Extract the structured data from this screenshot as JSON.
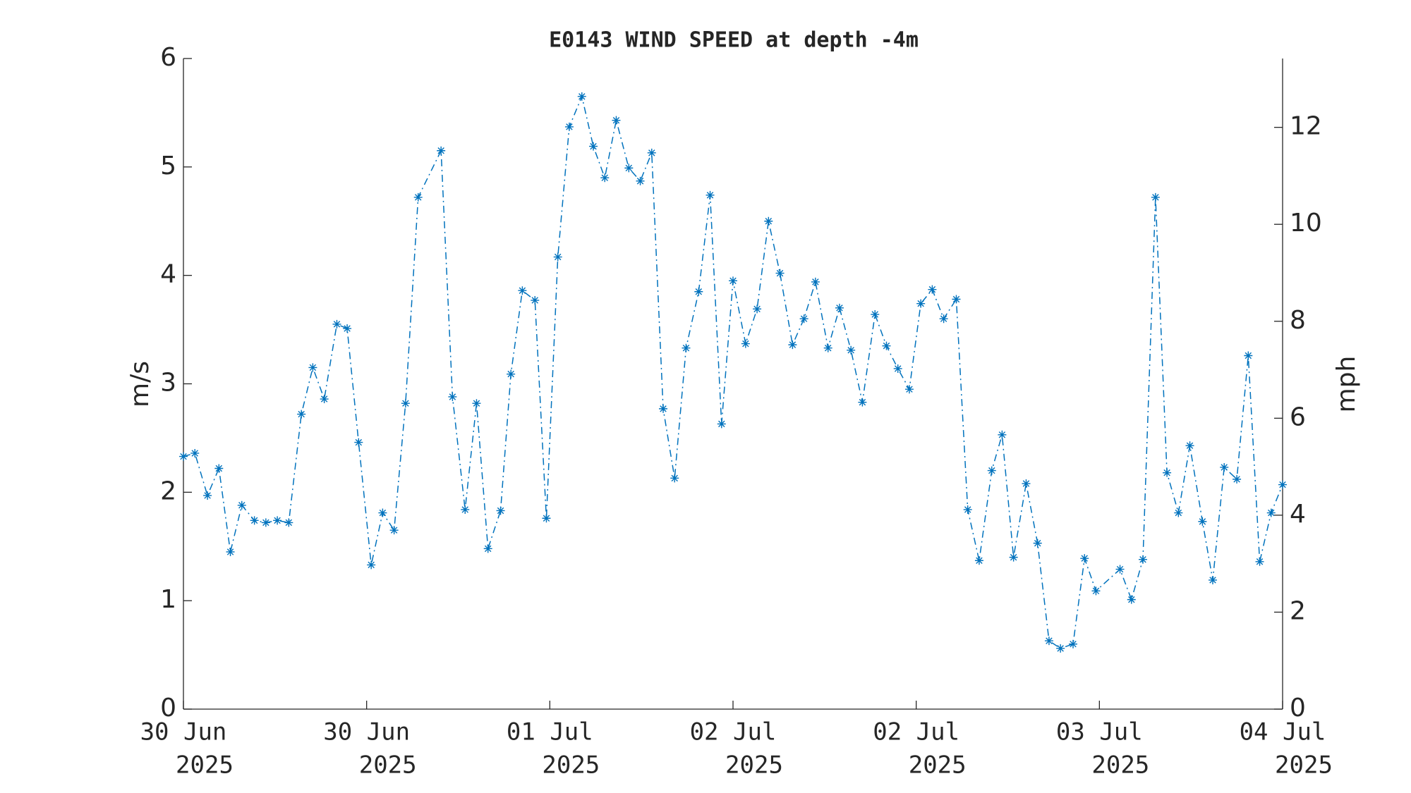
{
  "chart_data": {
    "type": "line",
    "title": "E0143 WIND SPEED at depth -4m",
    "ylabel": "m/s",
    "y2label": "mph",
    "color": "#0072BD",
    "line_style": "dashdot",
    "marker": "asterisk",
    "xlim": [
      0,
      96
    ],
    "xticks": [
      {
        "value": 0,
        "label": "30 Jun",
        "year": "2025"
      },
      {
        "value": 16,
        "label": "30 Jun",
        "year": "2025"
      },
      {
        "value": 32,
        "label": "01 Jul",
        "year": "2025"
      },
      {
        "value": 48,
        "label": "02 Jul",
        "year": "2025"
      },
      {
        "value": 64,
        "label": "02 Jul",
        "year": "2025"
      },
      {
        "value": 80,
        "label": "03 Jul",
        "year": "2025"
      },
      {
        "value": 96,
        "label": "04 Jul",
        "year": "2025"
      }
    ],
    "ylim": [
      0,
      6
    ],
    "yticks": [
      0,
      1,
      2,
      3,
      4,
      5,
      6
    ],
    "y2lim": [
      0,
      13.42
    ],
    "y2ticks": [
      0,
      2,
      4,
      6,
      8,
      10,
      12
    ],
    "x": [
      0,
      1.0,
      2.1,
      3.1,
      4.1,
      5.1,
      6.2,
      7.2,
      8.2,
      9.2,
      10.3,
      11.3,
      12.3,
      13.4,
      14.3,
      15.3,
      16.4,
      17.4,
      18.4,
      19.4,
      20.5,
      22.5,
      23.5,
      24.6,
      25.6,
      26.6,
      27.7,
      28.6,
      29.6,
      30.7,
      31.7,
      32.7,
      33.7,
      34.8,
      35.8,
      36.8,
      37.8,
      38.9,
      39.9,
      40.9,
      41.9,
      42.9,
      43.9,
      45.0,
      46.0,
      47.0,
      48.0,
      49.1,
      50.1,
      51.1,
      52.1,
      53.2,
      54.2,
      55.2,
      56.3,
      57.3,
      58.3,
      59.3,
      60.4,
      61.4,
      62.4,
      63.4,
      64.4,
      65.4,
      66.4,
      67.5,
      68.5,
      69.5,
      70.6,
      71.5,
      72.5,
      73.6,
      74.6,
      75.6,
      76.6,
      77.7,
      78.7,
      79.7,
      81.8,
      82.8,
      83.8,
      84.9,
      85.9,
      86.9,
      87.9,
      89.0,
      89.9,
      90.9,
      92.0,
      93.0,
      94.0,
      95.0,
      96.0
    ],
    "values": [
      2.33,
      2.36,
      1.97,
      2.22,
      1.45,
      1.88,
      1.74,
      1.72,
      1.74,
      1.72,
      2.72,
      3.15,
      2.86,
      3.55,
      3.51,
      2.46,
      1.33,
      1.81,
      1.65,
      2.82,
      4.72,
      5.15,
      2.88,
      1.84,
      2.82,
      1.48,
      1.83,
      3.09,
      3.86,
      3.77,
      1.76,
      4.17,
      5.37,
      5.65,
      5.19,
      4.9,
      5.43,
      4.99,
      4.87,
      5.13,
      2.77,
      2.13,
      3.33,
      3.85,
      4.74,
      2.63,
      3.95,
      3.37,
      3.69,
      4.5,
      4.02,
      3.36,
      3.6,
      3.94,
      3.33,
      3.7,
      3.31,
      2.83,
      3.64,
      3.35,
      3.14,
      2.95,
      3.74,
      3.87,
      3.6,
      3.78,
      1.84,
      1.37,
      2.2,
      2.53,
      1.4,
      2.08,
      1.53,
      0.63,
      0.56,
      0.6,
      1.39,
      1.09,
      1.29,
      1.01,
      1.38,
      4.72,
      2.18,
      1.81,
      2.43,
      1.73,
      1.19,
      2.23,
      2.12,
      3.26,
      1.36,
      1.81,
      2.07
    ]
  }
}
